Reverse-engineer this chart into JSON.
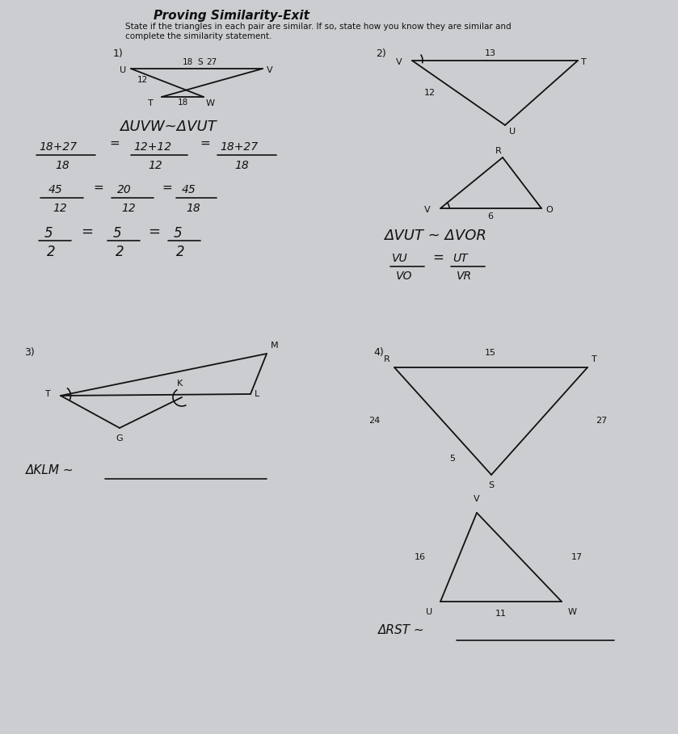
{
  "bg_color": "#cccdd0",
  "text_color": "#111111",
  "title": "Proving Similarity-Exit",
  "subtitle1": "State if the triangles in each pair are similar. If so, state how you know they are similar and",
  "subtitle2": "complete the similarity statement."
}
